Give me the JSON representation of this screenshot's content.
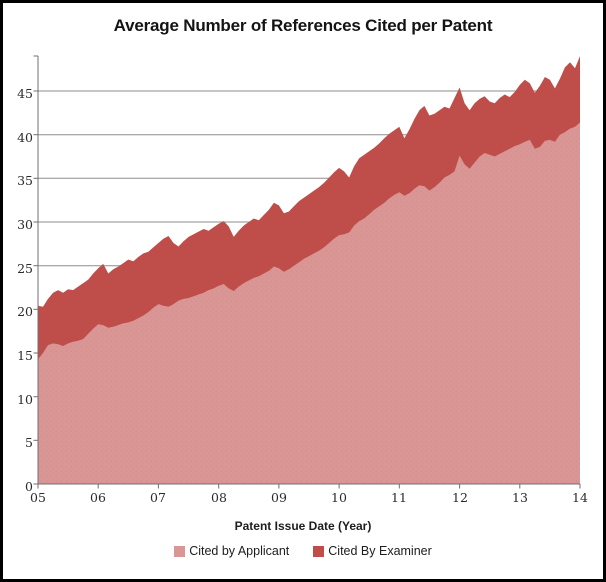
{
  "chart_data": {
    "type": "area",
    "stacked": true,
    "title": "Average Number of References Cited per Patent",
    "xlabel": "Patent Issue Date (Year)",
    "ylabel": "",
    "x_start_year": 2005.0,
    "x_end_year": 2014.0,
    "x_step_years": 0.0833,
    "x_ticks": [
      "05",
      "06",
      "07",
      "08",
      "09",
      "10",
      "11",
      "12",
      "13",
      "14"
    ],
    "y_ticks": [
      0,
      5,
      10,
      15,
      20,
      25,
      30,
      35,
      40,
      45
    ],
    "ylim": [
      0,
      49.2
    ],
    "grid": "horizontal every 5",
    "legend_position": "bottom",
    "series": [
      {
        "name": "Cited by Applicant",
        "color": "#d99694",
        "values": [
          14.3,
          15.0,
          15.9,
          16.1,
          16.0,
          15.8,
          16.1,
          16.3,
          16.4,
          16.6,
          17.2,
          17.8,
          18.3,
          18.2,
          17.9,
          18.0,
          18.2,
          18.4,
          18.5,
          18.7,
          19.0,
          19.3,
          19.7,
          20.2,
          20.6,
          20.4,
          20.3,
          20.6,
          21.0,
          21.2,
          21.3,
          21.5,
          21.7,
          21.9,
          22.2,
          22.4,
          22.7,
          22.9,
          22.4,
          22.1,
          22.6,
          23.0,
          23.3,
          23.6,
          23.8,
          24.1,
          24.4,
          24.9,
          24.7,
          24.3,
          24.6,
          25.0,
          25.4,
          25.8,
          26.1,
          26.4,
          26.7,
          27.1,
          27.6,
          28.1,
          28.5,
          28.6,
          28.8,
          29.6,
          30.1,
          30.4,
          30.9,
          31.4,
          31.8,
          32.2,
          32.7,
          33.1,
          33.4,
          33.0,
          33.3,
          33.8,
          34.2,
          34.1,
          33.6,
          34.0,
          34.5,
          35.1,
          35.4,
          35.8,
          37.6,
          36.6,
          36.1,
          36.8,
          37.5,
          37.9,
          37.7,
          37.5,
          37.8,
          38.1,
          38.4,
          38.7,
          38.9,
          39.2,
          39.4,
          38.4,
          38.6,
          39.3,
          39.4,
          39.2,
          40.0,
          40.3,
          40.7,
          40.9,
          41.4
        ]
      },
      {
        "name": "Cited By Examiner",
        "color": "#bf4e4b",
        "stacked_on": "Cited by Applicant",
        "values": [
          6.1,
          5.3,
          5.3,
          5.8,
          6.2,
          6.1,
          6.2,
          5.9,
          6.2,
          6.4,
          6.2,
          6.3,
          6.4,
          7.0,
          6.2,
          6.6,
          6.7,
          6.9,
          7.2,
          6.8,
          7.0,
          7.1,
          6.9,
          6.9,
          7.0,
          7.7,
          8.1,
          7.0,
          6.2,
          6.6,
          7.0,
          7.1,
          7.2,
          7.3,
          6.8,
          7.0,
          7.1,
          7.2,
          7.1,
          6.2,
          6.4,
          6.6,
          6.7,
          6.8,
          6.4,
          6.7,
          7.0,
          7.3,
          7.2,
          6.7,
          6.6,
          6.8,
          7.0,
          7.0,
          7.1,
          7.2,
          7.3,
          7.4,
          7.5,
          7.6,
          7.7,
          7.2,
          6.3,
          6.8,
          7.2,
          7.3,
          7.2,
          7.1,
          7.2,
          7.4,
          7.4,
          7.4,
          7.5,
          6.6,
          7.3,
          8.0,
          8.6,
          9.2,
          8.6,
          8.4,
          8.3,
          8.1,
          7.6,
          8.4,
          7.8,
          7.0,
          6.7,
          6.8,
          6.6,
          6.5,
          6.1,
          6.1,
          6.4,
          6.5,
          5.9,
          6.2,
          6.8,
          7.1,
          6.5,
          6.4,
          7.0,
          7.3,
          6.9,
          6.1,
          6.4,
          7.4,
          7.6,
          6.7,
          7.6
        ]
      }
    ],
    "colors": {
      "gridline": "#8e8e8e",
      "axis": "#707070",
      "background": "#ffffff",
      "border": "#000000",
      "title_text": "#141414",
      "tick_text": "#2b2b2b"
    }
  }
}
